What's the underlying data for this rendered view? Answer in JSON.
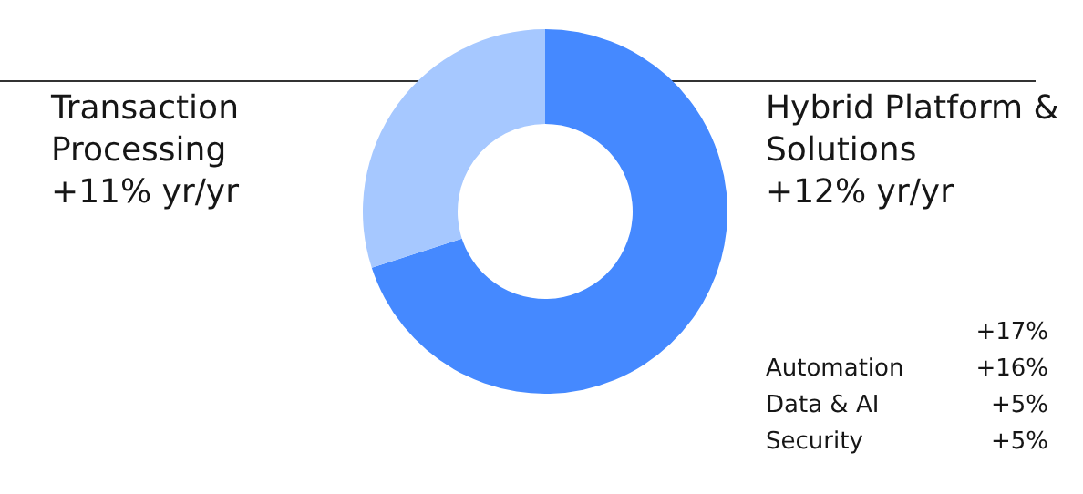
{
  "chart_data": {
    "type": "donut",
    "categories": [
      "Hybrid Platform & Solutions",
      "Transaction Processing"
    ],
    "values": [
      70,
      30
    ],
    "colors": [
      "#4589ff",
      "#a6c8ff"
    ],
    "annotations": [
      "+12% yr/yr",
      "+11% yr/yr",
      "+17%",
      "Automation +16%",
      "Data & AI +5%",
      "Security +5%"
    ]
  }
}
